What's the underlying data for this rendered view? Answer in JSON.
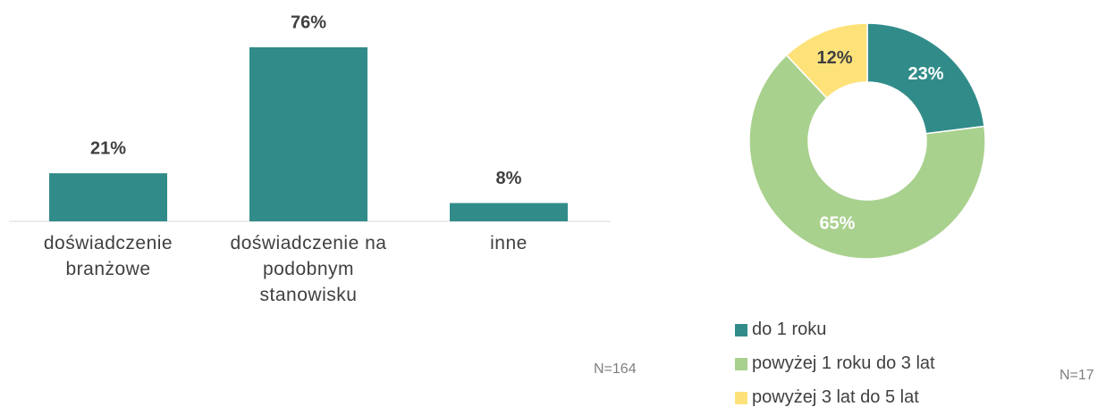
{
  "chart_data": [
    {
      "type": "bar",
      "categories": [
        "doświadczenie branżowe",
        "doświadczenie na podobnym stanowisku",
        "inne"
      ],
      "values": [
        21,
        76,
        8
      ],
      "value_labels": [
        "21%",
        "76%",
        "8%"
      ],
      "color": "#318c89",
      "note": "N=164"
    },
    {
      "type": "pie",
      "categories": [
        "do 1 roku",
        "powyżej 1 roku do 3 lat",
        "powyżej 3 lat do 5 lat"
      ],
      "values": [
        23,
        65,
        12
      ],
      "value_labels": [
        "23%",
        "65%",
        "12%"
      ],
      "colors": [
        "#318c89",
        "#a9d18e",
        "#fde27a"
      ],
      "note": "N=17"
    }
  ]
}
